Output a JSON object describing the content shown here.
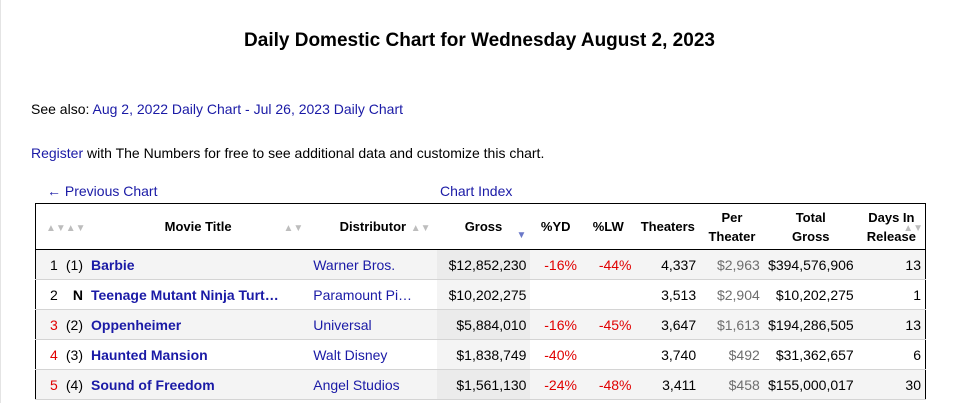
{
  "page_title": "Daily Domestic Chart for Wednesday August 2, 2023",
  "see_also": {
    "label": "See also:",
    "link1": "Aug 2, 2022 Daily Chart",
    "sep": " - ",
    "link2": "Jul 26, 2023 Daily Chart"
  },
  "register": {
    "link": "Register",
    "text": " with The Numbers for free to see additional data and customize this chart."
  },
  "nav": {
    "previous": "← Previous Chart",
    "index": "Chart Index"
  },
  "table": {
    "headers": {
      "title": "Movie Title",
      "distributor": "Distributor",
      "gross": "Gross",
      "pct_yd": "%YD",
      "pct_lw": "%LW",
      "theaters": "Theaters",
      "per_theater_1": "Per",
      "per_theater_2": "Theater",
      "total_1": "Total",
      "total_2": "Gross",
      "days_1": "Days In",
      "days_2": "Release"
    },
    "sort_glyph": "▲▼",
    "active_sort_glyph": "▼",
    "rows": [
      {
        "rank": "1",
        "prev": "(1)",
        "title": "Barbie",
        "distributor": "Warner Bros.",
        "gross": "$12,852,230",
        "yd": "-16%",
        "lw": "-44%",
        "theaters": "4,337",
        "per_theater": "$2,963",
        "total": "$394,576,906",
        "days": "13"
      },
      {
        "rank": "2",
        "prev": "N",
        "title": "Teenage Mutant Ninja Turt…",
        "distributor": "Paramount Pi…",
        "gross": "$10,202,275",
        "yd": "",
        "lw": "",
        "theaters": "3,513",
        "per_theater": "$2,904",
        "total": "$10,202,275",
        "days": "1"
      },
      {
        "rank": "3",
        "prev": "(2)",
        "title": "Oppenheimer",
        "distributor": "Universal",
        "gross": "$5,884,010",
        "yd": "-16%",
        "lw": "-45%",
        "theaters": "3,647",
        "per_theater": "$1,613",
        "total": "$194,286,505",
        "days": "13"
      },
      {
        "rank": "4",
        "prev": "(3)",
        "title": "Haunted Mansion",
        "distributor": "Walt Disney",
        "gross": "$1,838,749",
        "yd": "-40%",
        "lw": "",
        "theaters": "3,740",
        "per_theater": "$492",
        "total": "$31,362,657",
        "days": "6"
      },
      {
        "rank": "5",
        "prev": "(4)",
        "title": "Sound of Freedom",
        "distributor": "Angel Studios",
        "gross": "$1,561,130",
        "yd": "-24%",
        "lw": "-48%",
        "theaters": "3,411",
        "per_theater": "$458",
        "total": "$155,000,017",
        "days": "30"
      }
    ]
  },
  "colors": {
    "link": "#1a1aa6",
    "negative": "#e00000",
    "sort_active": "#6a78c8"
  }
}
